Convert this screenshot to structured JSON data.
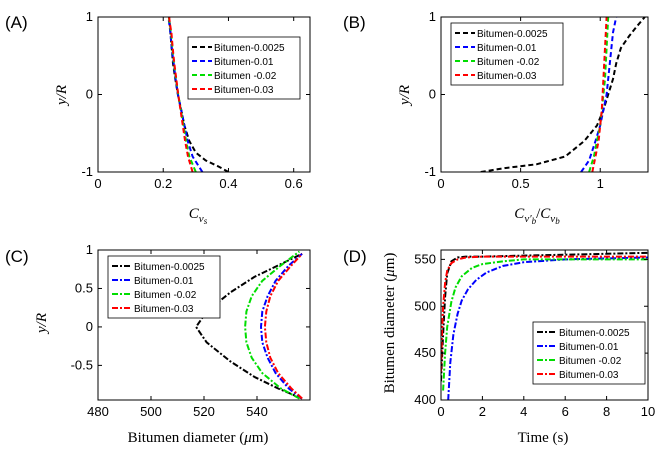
{
  "chart_data": [
    {
      "type": "line",
      "panel_label": "(A)",
      "xlabel": "C_vs",
      "ylabel": "y/R",
      "xlim": [
        0,
        0.65
      ],
      "ylim": [
        -1,
        1
      ],
      "xticks": [
        "0",
        "0.2",
        "0.4",
        "0.6"
      ],
      "yticks": [
        "-1",
        "0",
        "1"
      ],
      "legend": "top-right",
      "series": [
        {
          "name": "Bitumen-0.0025",
          "color": "#000000",
          "dash": "5,3",
          "x": [
            0.4,
            0.37,
            0.33,
            0.3,
            0.28,
            0.265,
            0.255,
            0.245,
            0.237,
            0.23,
            0.226,
            0.222,
            0.22,
            0.218
          ],
          "y": [
            -1,
            -0.93,
            -0.85,
            -0.75,
            -0.6,
            -0.4,
            -0.2,
            0,
            0.2,
            0.4,
            0.6,
            0.8,
            0.9,
            1
          ]
        },
        {
          "name": "Bitumen-0.01",
          "color": "#0000ff",
          "dash": "5,3",
          "x": [
            0.32,
            0.305,
            0.29,
            0.275,
            0.265,
            0.255,
            0.245,
            0.238,
            0.232,
            0.226,
            0.222,
            0.219,
            0.216
          ],
          "y": [
            -1,
            -0.9,
            -0.8,
            -0.6,
            -0.4,
            -0.2,
            0,
            0.2,
            0.4,
            0.6,
            0.8,
            0.9,
            1
          ]
        },
        {
          "name": "Bitumen -0.02",
          "color": "#00dd00",
          "dash": "5,3",
          "x": [
            0.3,
            0.29,
            0.28,
            0.27,
            0.262,
            0.254,
            0.246,
            0.239,
            0.233,
            0.228,
            0.224,
            0.22,
            0.217
          ],
          "y": [
            -1,
            -0.9,
            -0.8,
            -0.6,
            -0.4,
            -0.2,
            0,
            0.2,
            0.4,
            0.6,
            0.8,
            0.9,
            1
          ]
        },
        {
          "name": "Bitumen-0.03",
          "color": "#ff0000",
          "dash": "5,3",
          "x": [
            0.29,
            0.283,
            0.276,
            0.267,
            0.26,
            0.253,
            0.246,
            0.24,
            0.234,
            0.229,
            0.225,
            0.221,
            0.218
          ],
          "y": [
            -1,
            -0.9,
            -0.8,
            -0.6,
            -0.4,
            -0.2,
            0,
            0.2,
            0.4,
            0.6,
            0.8,
            0.9,
            1
          ]
        }
      ]
    },
    {
      "type": "line",
      "panel_label": "(B)",
      "xlabel": "C_v'b / C_vb",
      "ylabel": "y/R",
      "xlim": [
        0,
        1.3
      ],
      "ylim": [
        -1,
        1
      ],
      "xticks": [
        "0",
        "0.5",
        "1"
      ],
      "yticks": [
        "-1",
        "0",
        "1"
      ],
      "legend": "top-left",
      "series": [
        {
          "name": "Bitumen-0.0025",
          "color": "#000000",
          "dash": "5,3",
          "x": [
            0.25,
            0.4,
            0.6,
            0.78,
            0.9,
            0.98,
            1.02,
            1.05,
            1.08,
            1.1,
            1.13,
            1.18,
            1.23,
            1.28
          ],
          "y": [
            -1,
            -0.95,
            -0.9,
            -0.8,
            -0.6,
            -0.4,
            -0.2,
            0,
            0.2,
            0.4,
            0.6,
            0.75,
            0.88,
            1
          ]
        },
        {
          "name": "Bitumen-0.01",
          "color": "#0000ff",
          "dash": "5,3",
          "x": [
            0.88,
            0.93,
            0.97,
            1.0,
            1.02,
            1.04,
            1.05,
            1.06,
            1.07,
            1.08,
            1.09,
            1.1
          ],
          "y": [
            -1,
            -0.85,
            -0.6,
            -0.4,
            -0.2,
            0,
            0.2,
            0.4,
            0.6,
            0.8,
            0.9,
            1
          ]
        },
        {
          "name": "Bitumen -0.02",
          "color": "#00dd00",
          "dash": "5,3",
          "x": [
            0.93,
            0.96,
            0.98,
            1.0,
            1.01,
            1.02,
            1.03,
            1.035,
            1.04,
            1.045,
            1.05
          ],
          "y": [
            -1,
            -0.8,
            -0.6,
            -0.4,
            -0.2,
            0,
            0.2,
            0.4,
            0.6,
            0.8,
            1
          ]
        },
        {
          "name": "Bitumen-0.03",
          "color": "#ff0000",
          "dash": "5,3",
          "x": [
            0.95,
            0.97,
            0.99,
            1.0,
            1.01,
            1.015,
            1.02,
            1.025,
            1.03,
            1.035,
            1.04
          ],
          "y": [
            -1,
            -0.8,
            -0.6,
            -0.4,
            -0.2,
            0,
            0.2,
            0.4,
            0.6,
            0.8,
            1
          ]
        }
      ]
    },
    {
      "type": "line",
      "panel_label": "(C)",
      "xlabel": "Bitumen diameter (µm)",
      "ylabel": "y/R",
      "xlim": [
        480,
        560
      ],
      "ylim": [
        -0.95,
        1.0
      ],
      "xticks": [
        "480",
        "500",
        "520",
        "540"
      ],
      "yticks": [
        "-0.5",
        "0",
        "0.5",
        "1"
      ],
      "legend": "top-left",
      "series": [
        {
          "name": "Bitumen-0.0025",
          "color": "#000000",
          "dash": "6,2,2,2",
          "x": [
            557,
            548,
            539,
            530,
            521,
            517,
            521,
            530,
            539,
            548,
            557
          ],
          "y": [
            -0.93,
            -0.8,
            -0.65,
            -0.45,
            -0.2,
            0,
            0.2,
            0.45,
            0.65,
            0.8,
            0.95
          ]
        },
        {
          "name": "Bitumen-0.01",
          "color": "#0000ff",
          "dash": "6,2,2,2",
          "x": [
            557,
            552,
            547,
            544,
            542,
            541.5,
            542,
            544,
            547,
            552,
            557
          ],
          "y": [
            -0.93,
            -0.8,
            -0.6,
            -0.4,
            -0.2,
            0,
            0.2,
            0.4,
            0.6,
            0.8,
            0.95
          ]
        },
        {
          "name": "Bitumen -0.02",
          "color": "#00dd00",
          "dash": "6,2,2,2",
          "x": [
            556,
            549,
            542,
            538,
            536,
            535.5,
            536,
            538,
            542,
            549,
            556
          ],
          "y": [
            -0.93,
            -0.8,
            -0.6,
            -0.4,
            -0.2,
            0,
            0.2,
            0.4,
            0.6,
            0.8,
            0.98
          ]
        },
        {
          "name": "Bitumen-0.03",
          "color": "#ff0000",
          "dash": "6,2,2,2",
          "x": [
            557,
            553,
            548,
            545,
            543.5,
            543,
            543.5,
            545,
            548,
            553,
            557
          ],
          "y": [
            -0.93,
            -0.8,
            -0.6,
            -0.4,
            -0.2,
            0,
            0.2,
            0.4,
            0.6,
            0.8,
            0.95
          ]
        }
      ]
    },
    {
      "type": "line",
      "panel_label": "(D)",
      "xlabel": "Time (s)",
      "ylabel": "Bitumen diameter (µm)",
      "xlim": [
        0,
        10
      ],
      "ylim": [
        400,
        560
      ],
      "xticks": [
        "0",
        "2",
        "4",
        "6",
        "8",
        "10"
      ],
      "yticks": [
        "400",
        "450",
        "500",
        "550"
      ],
      "legend": "middle-right",
      "series": [
        {
          "name": "Bitumen-0.0025",
          "color": "#000000",
          "dash": "6,2,2,2",
          "x": [
            0,
            0.1,
            0.2,
            0.3,
            0.5,
            0.8,
            1.2,
            2,
            4,
            6,
            8,
            10
          ],
          "y": [
            420,
            470,
            510,
            535,
            548,
            552,
            553,
            553,
            554,
            555,
            556,
            557
          ]
        },
        {
          "name": "Bitumen-0.01",
          "color": "#0000ff",
          "dash": "6,2,2,2",
          "x": [
            0.35,
            0.45,
            0.6,
            0.8,
            1.0,
            1.3,
            1.7,
            2.2,
            3,
            4,
            6,
            8,
            10
          ],
          "y": [
            400,
            440,
            470,
            492,
            506,
            518,
            528,
            536,
            543,
            547,
            550,
            551,
            552
          ]
        },
        {
          "name": "Bitumen -0.02",
          "color": "#00dd00",
          "dash": "6,2,2,2",
          "x": [
            0.1,
            0.2,
            0.3,
            0.5,
            0.7,
            1.0,
            1.5,
            2,
            3,
            4,
            6,
            10
          ],
          "y": [
            410,
            450,
            478,
            505,
            520,
            532,
            541,
            545,
            548,
            550,
            550,
            550
          ]
        },
        {
          "name": "Bitumen-0.03",
          "color": "#ff0000",
          "dash": "6,2,2,2",
          "x": [
            0,
            0.05,
            0.1,
            0.2,
            0.3,
            0.5,
            0.8,
            1.2,
            2,
            4,
            10
          ],
          "y": [
            430,
            470,
            500,
            525,
            538,
            546,
            550,
            552,
            553,
            553,
            553
          ]
        }
      ]
    }
  ]
}
